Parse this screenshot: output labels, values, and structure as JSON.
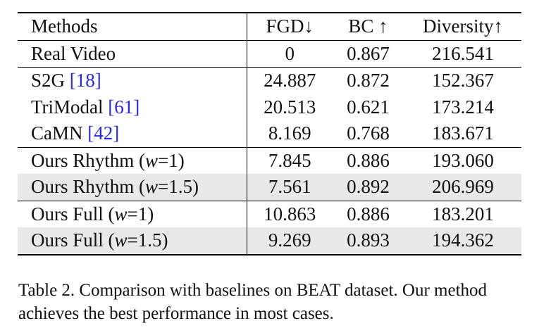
{
  "table": {
    "headers": {
      "methods": "Methods",
      "fgd": "FGD↓",
      "bc": "BC ↑",
      "diversity": "Diversity↑"
    },
    "rows": [
      {
        "name": "Real Video",
        "cite": "",
        "w": "",
        "fgd": "0",
        "bc": "0.867",
        "diversity": "216.541"
      },
      {
        "name": "S2G ",
        "cite": "[18]",
        "w": "",
        "fgd": "24.887",
        "bc": "0.872",
        "diversity": "152.367"
      },
      {
        "name": "TriModal ",
        "cite": "[61]",
        "w": "",
        "fgd": "20.513",
        "bc": "0.621",
        "diversity": "173.214"
      },
      {
        "name": "CaMN ",
        "cite": "[42]",
        "w": "",
        "fgd": "8.169",
        "bc": "0.768",
        "diversity": "183.671"
      },
      {
        "name": "Ours Rhythm (",
        "w": "w",
        "eq": "=1)",
        "fgd": "7.845",
        "bc": "0.886",
        "diversity": "193.060"
      },
      {
        "name": "Ours Rhythm (",
        "w": "w",
        "eq": "=1.5)",
        "fgd": "7.561",
        "bc": "0.892",
        "diversity": "206.969"
      },
      {
        "name": "Ours Full (",
        "w": "w",
        "eq": "=1)",
        "fgd": "10.863",
        "bc": "0.886",
        "diversity": "183.201"
      },
      {
        "name": "Ours Full (",
        "w": "w",
        "eq": "=1.5)",
        "fgd": "9.269",
        "bc": "0.893",
        "diversity": "194.362"
      }
    ]
  },
  "caption": {
    "line1": "Table 2. Comparison with baselines on BEAT dataset. Our method",
    "line2": "achieves the best performance in most cases."
  }
}
